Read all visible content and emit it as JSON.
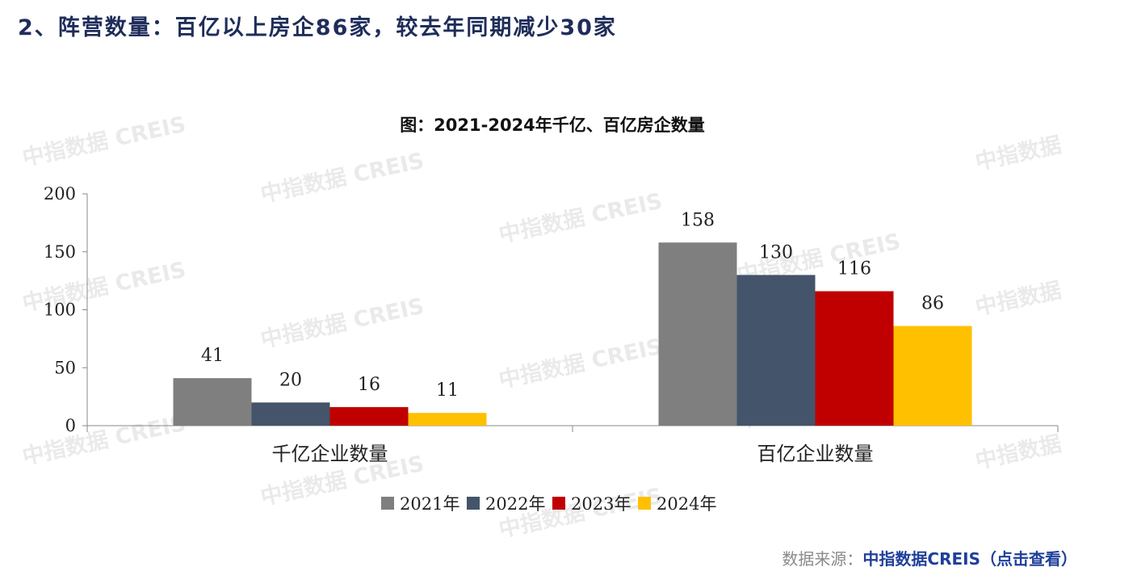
{
  "heading": "2、阵营数量：百亿以上房企86家，较去年同期减少30家",
  "watermark": "中指数据 CREIS",
  "watermark_short": "中指数据",
  "source": {
    "label": "数据来源：",
    "link": "中指数据CREIS（点击查看）"
  },
  "colors": {
    "heading": "#1f2d5a",
    "link": "#1f3f9a",
    "source_label": "#8a8a8a"
  },
  "chart_data": {
    "type": "bar",
    "title": "图：2021-2024年千亿、百亿房企数量",
    "xlabel": "",
    "ylabel": "",
    "categories": [
      "千亿企业数量",
      "百亿企业数量"
    ],
    "series": [
      {
        "name": "2021年",
        "values": [
          41,
          158
        ],
        "color": "#7f7f7f"
      },
      {
        "name": "2022年",
        "values": [
          20,
          130
        ],
        "color": "#44546a"
      },
      {
        "name": "2023年",
        "values": [
          16,
          116
        ],
        "color": "#c00000"
      },
      {
        "name": "2024年",
        "values": [
          11,
          86
        ],
        "color": "#ffc000"
      }
    ],
    "ylim": [
      0,
      200
    ],
    "yticks": [
      0,
      50,
      100,
      150,
      200
    ],
    "grid": false,
    "legend": "bottom",
    "data_labels": true
  }
}
